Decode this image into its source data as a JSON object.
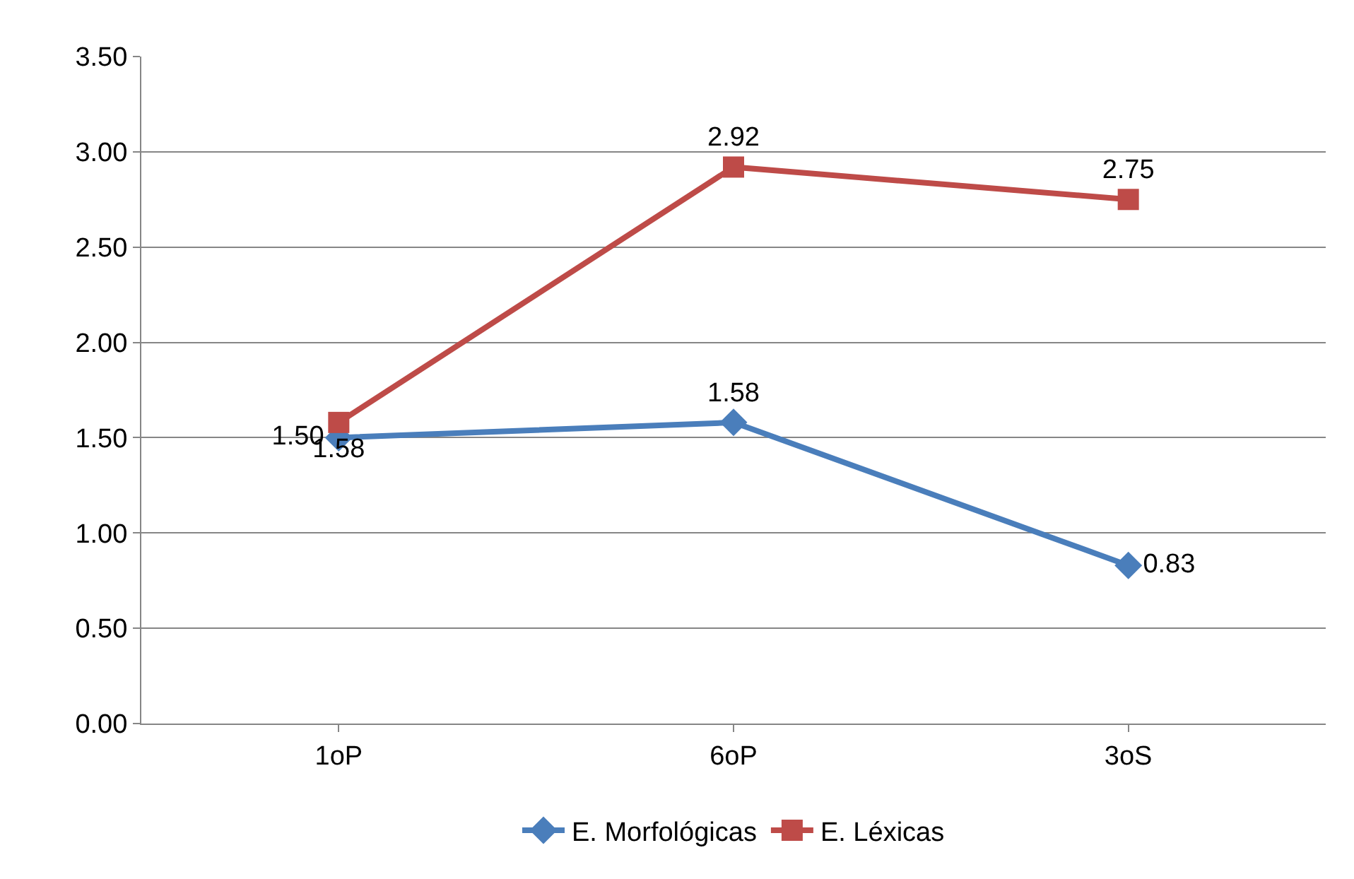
{
  "chart_data": {
    "type": "line",
    "categories": [
      "1oP",
      "6oP",
      "3oS"
    ],
    "series": [
      {
        "name": "E. Morfológicas",
        "color": "#4a7ebb",
        "marker": "diamond",
        "values": [
          1.5,
          1.58,
          0.83
        ],
        "value_labels": [
          "1.50",
          "1.58",
          "0.83"
        ]
      },
      {
        "name": "E. Léxicas",
        "color": "#be4b48",
        "marker": "square",
        "values": [
          1.58,
          2.92,
          2.75
        ],
        "value_labels": [
          "1.58",
          "2.92",
          "2.75"
        ]
      }
    ],
    "ylim": [
      0,
      3.5
    ],
    "yticks": [
      {
        "value": 0,
        "label": "0.00"
      },
      {
        "value": 0.5,
        "label": "0.50"
      },
      {
        "value": 1,
        "label": "1.00"
      },
      {
        "value": 1.5,
        "label": "1.50"
      },
      {
        "value": 2,
        "label": "2.00"
      },
      {
        "value": 2.5,
        "label": "2.50"
      },
      {
        "value": 3,
        "label": "3.00"
      },
      {
        "value": 3.5,
        "label": "3.50"
      }
    ],
    "grid": "y",
    "legend": "bottom",
    "line_style": "solid"
  }
}
